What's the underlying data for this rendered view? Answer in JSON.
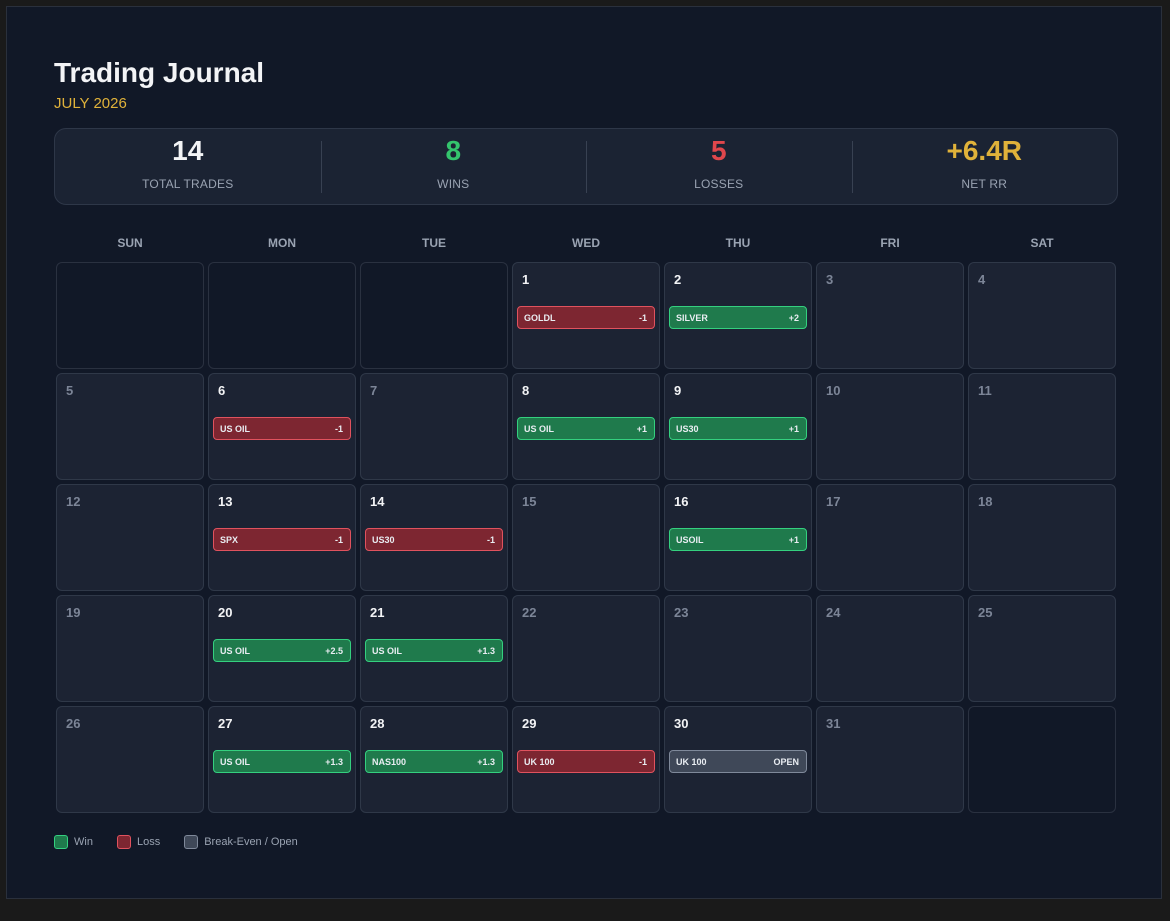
{
  "header": {
    "title": "Trading Journal",
    "month": "JULY 2026"
  },
  "stats": [
    {
      "value": "14",
      "label": "TOTAL TRADES",
      "color": "#f3f4f6"
    },
    {
      "value": "8",
      "label": "WINS",
      "color": "#34c46d"
    },
    {
      "value": "5",
      "label": "LOSSES",
      "color": "#e0474c"
    },
    {
      "value": "+6.4R",
      "label": "NET RR",
      "color": "#e0b23a"
    }
  ],
  "weekdays": [
    "SUN",
    "MON",
    "TUE",
    "WED",
    "THU",
    "FRI",
    "SAT"
  ],
  "cells": [
    {
      "empty": true
    },
    {
      "empty": true
    },
    {
      "empty": true
    },
    {
      "day": "1",
      "trade": {
        "symbol": "GOLDL",
        "result": "-1",
        "status": "loss"
      }
    },
    {
      "day": "2",
      "trade": {
        "symbol": "SILVER",
        "result": "+2",
        "status": "win"
      }
    },
    {
      "day": "3"
    },
    {
      "day": "4"
    },
    {
      "day": "5"
    },
    {
      "day": "6",
      "trade": {
        "symbol": "US OIL",
        "result": "-1",
        "status": "loss"
      }
    },
    {
      "day": "7"
    },
    {
      "day": "8",
      "trade": {
        "symbol": "US OIL",
        "result": "+1",
        "status": "win"
      }
    },
    {
      "day": "9",
      "trade": {
        "symbol": "US30",
        "result": "+1",
        "status": "win"
      }
    },
    {
      "day": "10"
    },
    {
      "day": "11"
    },
    {
      "day": "12"
    },
    {
      "day": "13",
      "trade": {
        "symbol": "SPX",
        "result": "-1",
        "status": "loss"
      }
    },
    {
      "day": "14",
      "trade": {
        "symbol": "US30",
        "result": "-1",
        "status": "loss"
      }
    },
    {
      "day": "15"
    },
    {
      "day": "16",
      "trade": {
        "symbol": "USOIL",
        "result": "+1",
        "status": "win"
      }
    },
    {
      "day": "17"
    },
    {
      "day": "18"
    },
    {
      "day": "19"
    },
    {
      "day": "20",
      "trade": {
        "symbol": "US OIL",
        "result": "+2.5",
        "status": "win"
      }
    },
    {
      "day": "21",
      "trade": {
        "symbol": "US OIL",
        "result": "+1.3",
        "status": "win"
      }
    },
    {
      "day": "22"
    },
    {
      "day": "23"
    },
    {
      "day": "24"
    },
    {
      "day": "25"
    },
    {
      "day": "26"
    },
    {
      "day": "27",
      "trade": {
        "symbol": "US OIL",
        "result": "+1.3",
        "status": "win"
      }
    },
    {
      "day": "28",
      "trade": {
        "symbol": "NAS100",
        "result": "+1.3",
        "status": "win"
      }
    },
    {
      "day": "29",
      "trade": {
        "symbol": "UK 100",
        "result": "-1",
        "status": "loss"
      }
    },
    {
      "day": "30",
      "trade": {
        "symbol": "UK 100",
        "result": "OPEN",
        "status": "open"
      }
    },
    {
      "day": "31"
    },
    {
      "empty": true
    }
  ],
  "legend": [
    {
      "label": "Win",
      "status": "win"
    },
    {
      "label": "Loss",
      "status": "loss"
    },
    {
      "label": "Break-Even / Open",
      "status": "open"
    }
  ]
}
